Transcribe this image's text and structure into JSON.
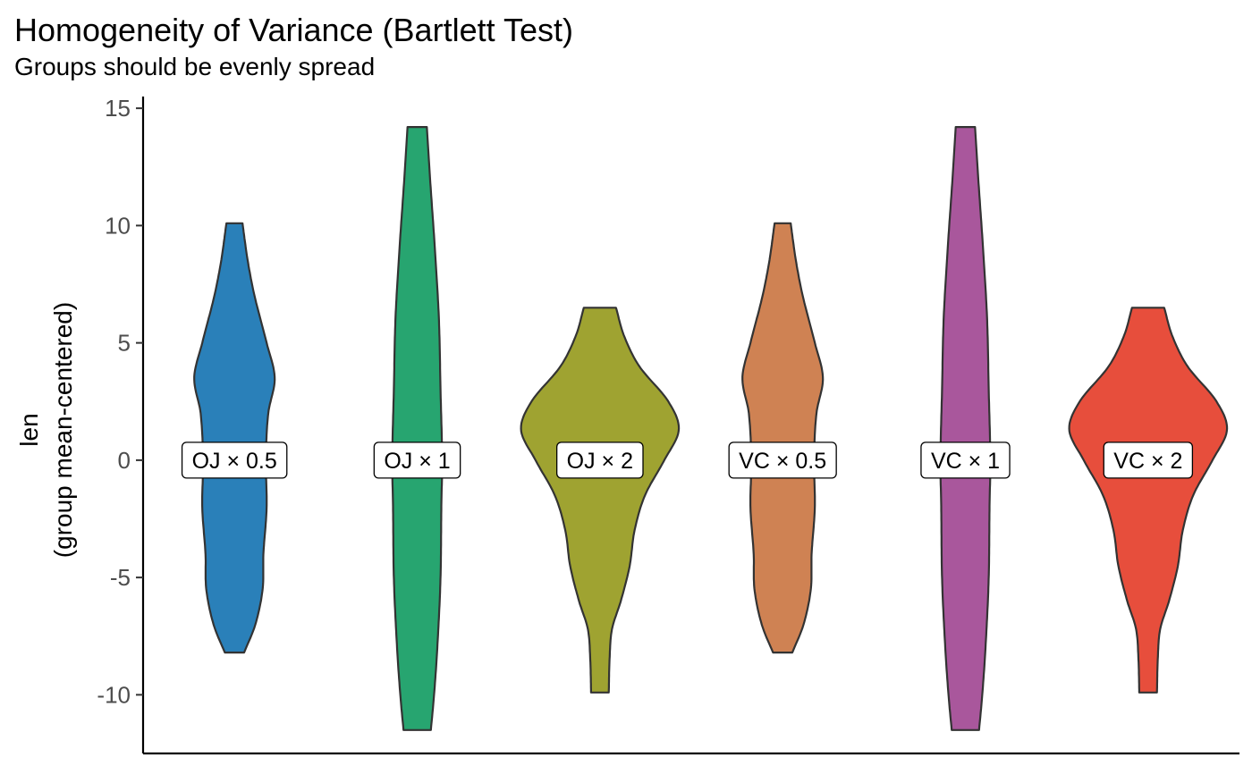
{
  "chart_data": {
    "type": "violin",
    "title": "Homogeneity of Variance (Bartlett Test)",
    "subtitle": "Groups should be evenly spread",
    "ylabel_lines": [
      "len",
      "(group mean-centered)"
    ],
    "xlabel": "",
    "ylim": [
      -12.5,
      15.5
    ],
    "yticks": [
      -10,
      -5,
      0,
      5,
      10,
      15
    ],
    "ytick_labels": [
      "-10",
      "-5",
      "0",
      "5",
      "10",
      "15"
    ],
    "grid": false,
    "legend": "none",
    "outline_color": "#333333",
    "label_at_y": 0,
    "groups": [
      {
        "label": "OJ × 0.5",
        "color": "#2a80b9",
        "min": -8.2,
        "max": 10.1,
        "density": [
          [
            -8.2,
            0.24
          ],
          [
            -7.0,
            0.52
          ],
          [
            -5.5,
            0.7
          ],
          [
            -4.0,
            0.72
          ],
          [
            -2.0,
            0.8
          ],
          [
            0.0,
            0.78
          ],
          [
            2.0,
            0.84
          ],
          [
            3.5,
            1.0
          ],
          [
            5.0,
            0.8
          ],
          [
            7.0,
            0.5
          ],
          [
            8.5,
            0.33
          ],
          [
            10.1,
            0.2
          ]
        ]
      },
      {
        "label": "OJ × 1",
        "color": "#27a570",
        "min": -11.5,
        "max": 14.2,
        "density": [
          [
            -11.5,
            0.34
          ],
          [
            -10.0,
            0.42
          ],
          [
            -8.0,
            0.5
          ],
          [
            -5.0,
            0.58
          ],
          [
            -2.0,
            0.6
          ],
          [
            0.0,
            0.62
          ],
          [
            3.0,
            0.58
          ],
          [
            6.0,
            0.54
          ],
          [
            9.0,
            0.44
          ],
          [
            12.0,
            0.32
          ],
          [
            14.2,
            0.24
          ]
        ]
      },
      {
        "label": "OJ × 2",
        "color": "#9fa331",
        "min": -9.9,
        "max": 6.5,
        "density": [
          [
            -9.9,
            0.22
          ],
          [
            -8.5,
            0.24
          ],
          [
            -7.2,
            0.3
          ],
          [
            -6.0,
            0.52
          ],
          [
            -4.5,
            0.74
          ],
          [
            -3.0,
            0.86
          ],
          [
            -1.5,
            1.12
          ],
          [
            0.0,
            1.6
          ],
          [
            1.3,
            1.96
          ],
          [
            2.5,
            1.7
          ],
          [
            4.0,
            0.98
          ],
          [
            5.3,
            0.6
          ],
          [
            6.5,
            0.4
          ]
        ]
      },
      {
        "label": "VC × 0.5",
        "color": "#cf8253",
        "min": -8.2,
        "max": 10.1,
        "density": [
          [
            -8.2,
            0.24
          ],
          [
            -7.0,
            0.52
          ],
          [
            -5.5,
            0.7
          ],
          [
            -4.0,
            0.72
          ],
          [
            -2.0,
            0.8
          ],
          [
            0.0,
            0.78
          ],
          [
            2.0,
            0.84
          ],
          [
            3.5,
            1.0
          ],
          [
            5.0,
            0.8
          ],
          [
            7.0,
            0.5
          ],
          [
            8.5,
            0.33
          ],
          [
            10.1,
            0.2
          ]
        ]
      },
      {
        "label": "VC × 1",
        "color": "#a9579c",
        "min": -11.5,
        "max": 14.2,
        "density": [
          [
            -11.5,
            0.34
          ],
          [
            -10.0,
            0.42
          ],
          [
            -8.0,
            0.5
          ],
          [
            -5.0,
            0.58
          ],
          [
            -2.0,
            0.6
          ],
          [
            0.0,
            0.62
          ],
          [
            3.0,
            0.58
          ],
          [
            6.0,
            0.54
          ],
          [
            9.0,
            0.44
          ],
          [
            12.0,
            0.32
          ],
          [
            14.2,
            0.24
          ]
        ]
      },
      {
        "label": "VC × 2",
        "color": "#e74e3c",
        "min": -9.9,
        "max": 6.5,
        "density": [
          [
            -9.9,
            0.22
          ],
          [
            -8.5,
            0.24
          ],
          [
            -7.2,
            0.3
          ],
          [
            -6.0,
            0.52
          ],
          [
            -4.5,
            0.74
          ],
          [
            -3.0,
            0.86
          ],
          [
            -1.5,
            1.12
          ],
          [
            0.0,
            1.6
          ],
          [
            1.3,
            1.96
          ],
          [
            2.5,
            1.7
          ],
          [
            4.0,
            0.98
          ],
          [
            5.3,
            0.6
          ],
          [
            6.5,
            0.4
          ]
        ]
      }
    ]
  }
}
